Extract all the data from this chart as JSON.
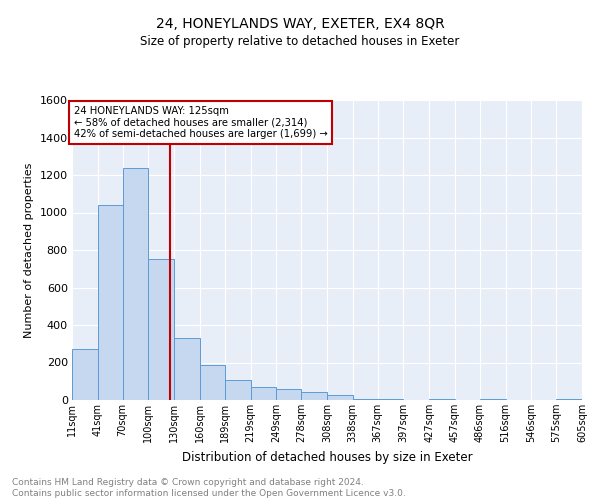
{
  "title": "24, HONEYLANDS WAY, EXETER, EX4 8QR",
  "subtitle": "Size of property relative to detached houses in Exeter",
  "xlabel": "Distribution of detached houses by size in Exeter",
  "ylabel": "Number of detached properties",
  "bar_color": "#c5d8f0",
  "bar_edge_color": "#5b9bd5",
  "background_color": "#e8eef8",
  "grid_color": "#d0d8e8",
  "vline_x": 125,
  "vline_color": "#c00000",
  "annotation_text": "24 HONEYLANDS WAY: 125sqm\n← 58% of detached houses are smaller (2,314)\n42% of semi-detached houses are larger (1,699) →",
  "annotation_box_color": "#ffffff",
  "annotation_box_edge": "#c00000",
  "bins": [
    11,
    41,
    70,
    100,
    130,
    160,
    189,
    219,
    249,
    278,
    308,
    338,
    367,
    397,
    427,
    457,
    486,
    516,
    546,
    575,
    605
  ],
  "bin_labels": [
    "11sqm",
    "41sqm",
    "70sqm",
    "100sqm",
    "130sqm",
    "160sqm",
    "189sqm",
    "219sqm",
    "249sqm",
    "278sqm",
    "308sqm",
    "338sqm",
    "367sqm",
    "397sqm",
    "427sqm",
    "457sqm",
    "486sqm",
    "516sqm",
    "546sqm",
    "575sqm",
    "605sqm"
  ],
  "values": [
    270,
    1040,
    1240,
    750,
    330,
    185,
    105,
    70,
    60,
    45,
    25,
    5,
    5,
    0,
    5,
    0,
    5,
    0,
    0,
    5
  ],
  "ylim": [
    0,
    1600
  ],
  "yticks": [
    0,
    200,
    400,
    600,
    800,
    1000,
    1200,
    1400,
    1600
  ],
  "footer": "Contains HM Land Registry data © Crown copyright and database right 2024.\nContains public sector information licensed under the Open Government Licence v3.0.",
  "footer_color": "#808080"
}
